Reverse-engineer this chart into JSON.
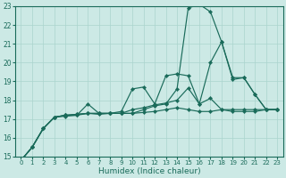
{
  "xlabel": "Humidex (Indice chaleur)",
  "xlim": [
    -0.5,
    23.5
  ],
  "ylim": [
    15,
    23
  ],
  "xticks": [
    0,
    1,
    2,
    3,
    4,
    5,
    6,
    7,
    8,
    9,
    10,
    11,
    12,
    13,
    14,
    15,
    16,
    17,
    18,
    19,
    20,
    21,
    22,
    23
  ],
  "yticks": [
    15,
    16,
    17,
    18,
    19,
    20,
    21,
    22,
    23
  ],
  "bg_color": "#cce9e5",
  "line_color": "#1a6b5a",
  "grid_color": "#aad4ce",
  "lines": [
    {
      "x": [
        0,
        1,
        2,
        3,
        4,
        5,
        6,
        7,
        8,
        9,
        10,
        11,
        12,
        13,
        14,
        15,
        16,
        17,
        18,
        19,
        20,
        21,
        22,
        23
      ],
      "y": [
        14.8,
        15.5,
        16.5,
        17.1,
        17.2,
        17.2,
        17.3,
        17.25,
        17.3,
        17.3,
        17.3,
        17.35,
        17.4,
        17.5,
        17.6,
        17.5,
        17.4,
        17.4,
        17.5,
        17.4,
        17.4,
        17.4,
        17.5,
        17.5
      ]
    },
    {
      "x": [
        0,
        1,
        2,
        3,
        4,
        5,
        6,
        7,
        8,
        9,
        10,
        11,
        12,
        13,
        14,
        15,
        16,
        17,
        18,
        19,
        20,
        21,
        22,
        23
      ],
      "y": [
        14.8,
        15.5,
        16.5,
        17.1,
        17.2,
        17.25,
        17.3,
        17.3,
        17.3,
        17.3,
        17.5,
        17.6,
        17.75,
        17.85,
        18.0,
        18.65,
        17.8,
        18.1,
        17.5,
        17.5,
        17.5,
        17.5,
        17.5,
        17.5
      ]
    },
    {
      "x": [
        0,
        1,
        2,
        3,
        4,
        5,
        6,
        7,
        8,
        9,
        10,
        11,
        12,
        13,
        14,
        15,
        16,
        17,
        18,
        19,
        20,
        21,
        22,
        23
      ],
      "y": [
        14.8,
        15.5,
        16.5,
        17.1,
        17.15,
        17.2,
        17.8,
        17.3,
        17.3,
        17.4,
        18.6,
        18.7,
        17.8,
        19.3,
        19.4,
        19.3,
        17.8,
        20.0,
        21.1,
        19.1,
        19.2,
        18.3,
        17.5,
        17.5
      ]
    },
    {
      "x": [
        0,
        1,
        2,
        3,
        4,
        5,
        6,
        7,
        8,
        9,
        10,
        11,
        12,
        13,
        14,
        15,
        16,
        17,
        18,
        19,
        20,
        21,
        22,
        23
      ],
      "y": [
        14.8,
        15.5,
        16.5,
        17.1,
        17.2,
        17.25,
        17.3,
        17.3,
        17.3,
        17.3,
        17.3,
        17.5,
        17.7,
        17.8,
        18.6,
        22.9,
        23.1,
        22.7,
        21.1,
        19.2,
        19.2,
        18.3,
        17.5,
        17.5
      ]
    }
  ]
}
